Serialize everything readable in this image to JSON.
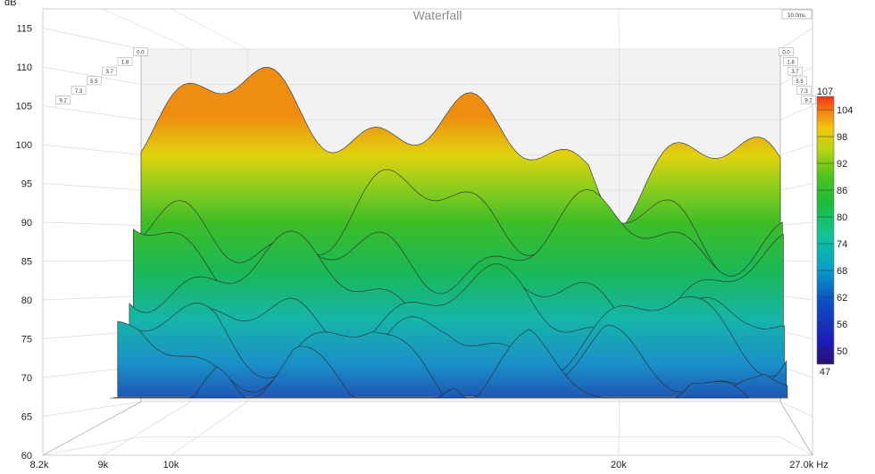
{
  "chart_data": {
    "type": "area",
    "title": "Waterfall",
    "ylabel": "dB",
    "y_ticks": [
      60,
      65,
      70,
      75,
      80,
      85,
      90,
      95,
      100,
      105,
      110,
      115
    ],
    "ylim": [
      60,
      116
    ],
    "x_ticks": [
      "8.2k",
      "9k",
      "10k",
      "20k"
    ],
    "x_unit_label": "27.0k Hz",
    "x_range_hz": [
      8200,
      27000
    ],
    "x_scale": "log",
    "time_ticks_ms": [
      "0.0",
      "1.8",
      "3.7",
      "5.5",
      "7.3",
      "9.2"
    ],
    "time_end_label": "10.0ms",
    "colorbar": {
      "min_label": "47",
      "max_label": "107",
      "ticks": [
        "104",
        "98",
        "92",
        "86",
        "80",
        "74",
        "68",
        "62",
        "56",
        "50"
      ]
    },
    "slice_levels_db": [
      101,
      88,
      85,
      80,
      77,
      75,
      73,
      70,
      67
    ],
    "grid": true
  }
}
